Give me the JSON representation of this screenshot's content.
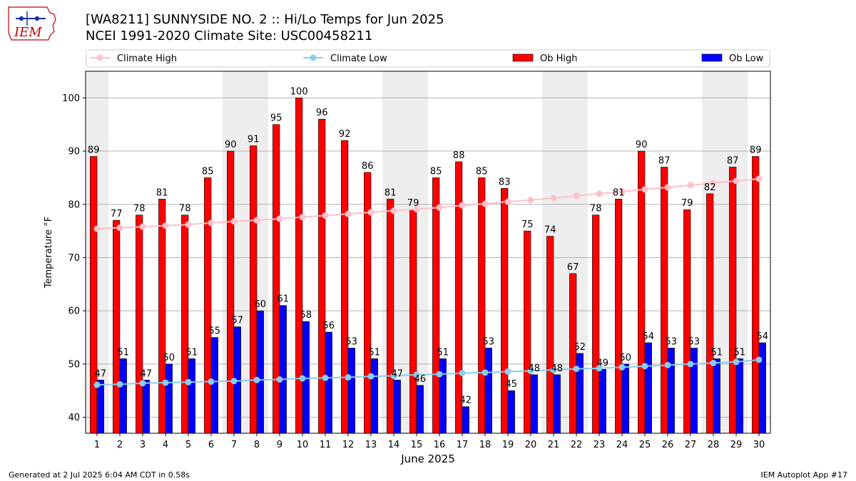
{
  "header": {
    "title_line1": "[WA8211] SUNNYSIDE NO. 2 :: Hi/Lo Temps for Jun 2025",
    "title_line2": "NCEI 1991-2020 Climate Site: USC00458211"
  },
  "logo": {
    "text": "IEM"
  },
  "footer": {
    "left": "Generated at 2 Jul 2025 6:04 AM CDT in 0.58s",
    "right": "IEM Autoplot App #17"
  },
  "colors": {
    "ob_high": "#ff0000",
    "ob_low": "#0000ff",
    "climate_high": "#ffc0cb",
    "climate_low": "#87ceeb",
    "weekend_shade": "#eeeeee",
    "grid": "#b0b0b0"
  },
  "chart_data": {
    "type": "bar",
    "xlabel": "June 2025",
    "ylabel": "Temperature °F",
    "ylim": [
      37,
      105
    ],
    "yticks": [
      40,
      50,
      60,
      70,
      80,
      90,
      100
    ],
    "grid": "horizontal",
    "legend_placement": "top",
    "categories": [
      1,
      2,
      3,
      4,
      5,
      6,
      7,
      8,
      9,
      10,
      11,
      12,
      13,
      14,
      15,
      16,
      17,
      18,
      19,
      20,
      21,
      22,
      23,
      24,
      25,
      26,
      27,
      28,
      29,
      30
    ],
    "shaded_days": [
      1,
      7,
      8,
      14,
      15,
      21,
      22,
      28,
      29
    ],
    "series": [
      {
        "name": "Climate High",
        "kind": "line",
        "values": [
          75.4,
          75.6,
          75.8,
          76.0,
          76.2,
          76.5,
          76.8,
          77.0,
          77.3,
          77.6,
          77.9,
          78.2,
          78.5,
          78.8,
          79.1,
          79.4,
          79.8,
          80.1,
          80.5,
          80.8,
          81.2,
          81.6,
          82.0,
          82.4,
          82.8,
          83.2,
          83.6,
          84.0,
          84.4,
          84.8
        ]
      },
      {
        "name": "Climate Low",
        "kind": "line",
        "values": [
          46.1,
          46.2,
          46.4,
          46.5,
          46.6,
          46.7,
          46.8,
          47.0,
          47.1,
          47.3,
          47.4,
          47.5,
          47.7,
          47.8,
          48.0,
          48.1,
          48.3,
          48.4,
          48.6,
          48.7,
          48.9,
          49.1,
          49.2,
          49.4,
          49.6,
          49.8,
          50.0,
          50.2,
          50.4,
          50.8
        ]
      },
      {
        "name": "Ob High",
        "kind": "bar",
        "values": [
          89,
          77,
          78,
          81,
          78,
          85,
          90,
          91,
          95,
          100,
          96,
          92,
          86,
          81,
          79,
          85,
          88,
          85,
          83,
          75,
          74,
          67,
          78,
          81,
          90,
          87,
          79,
          82,
          87,
          89
        ]
      },
      {
        "name": "Ob Low",
        "kind": "bar",
        "values": [
          47,
          51,
          47,
          50,
          51,
          55,
          57,
          60,
          61,
          58,
          56,
          53,
          51,
          47,
          46,
          51,
          42,
          53,
          45,
          48,
          48,
          52,
          49,
          50,
          54,
          53,
          53,
          51,
          51,
          54
        ]
      }
    ]
  }
}
